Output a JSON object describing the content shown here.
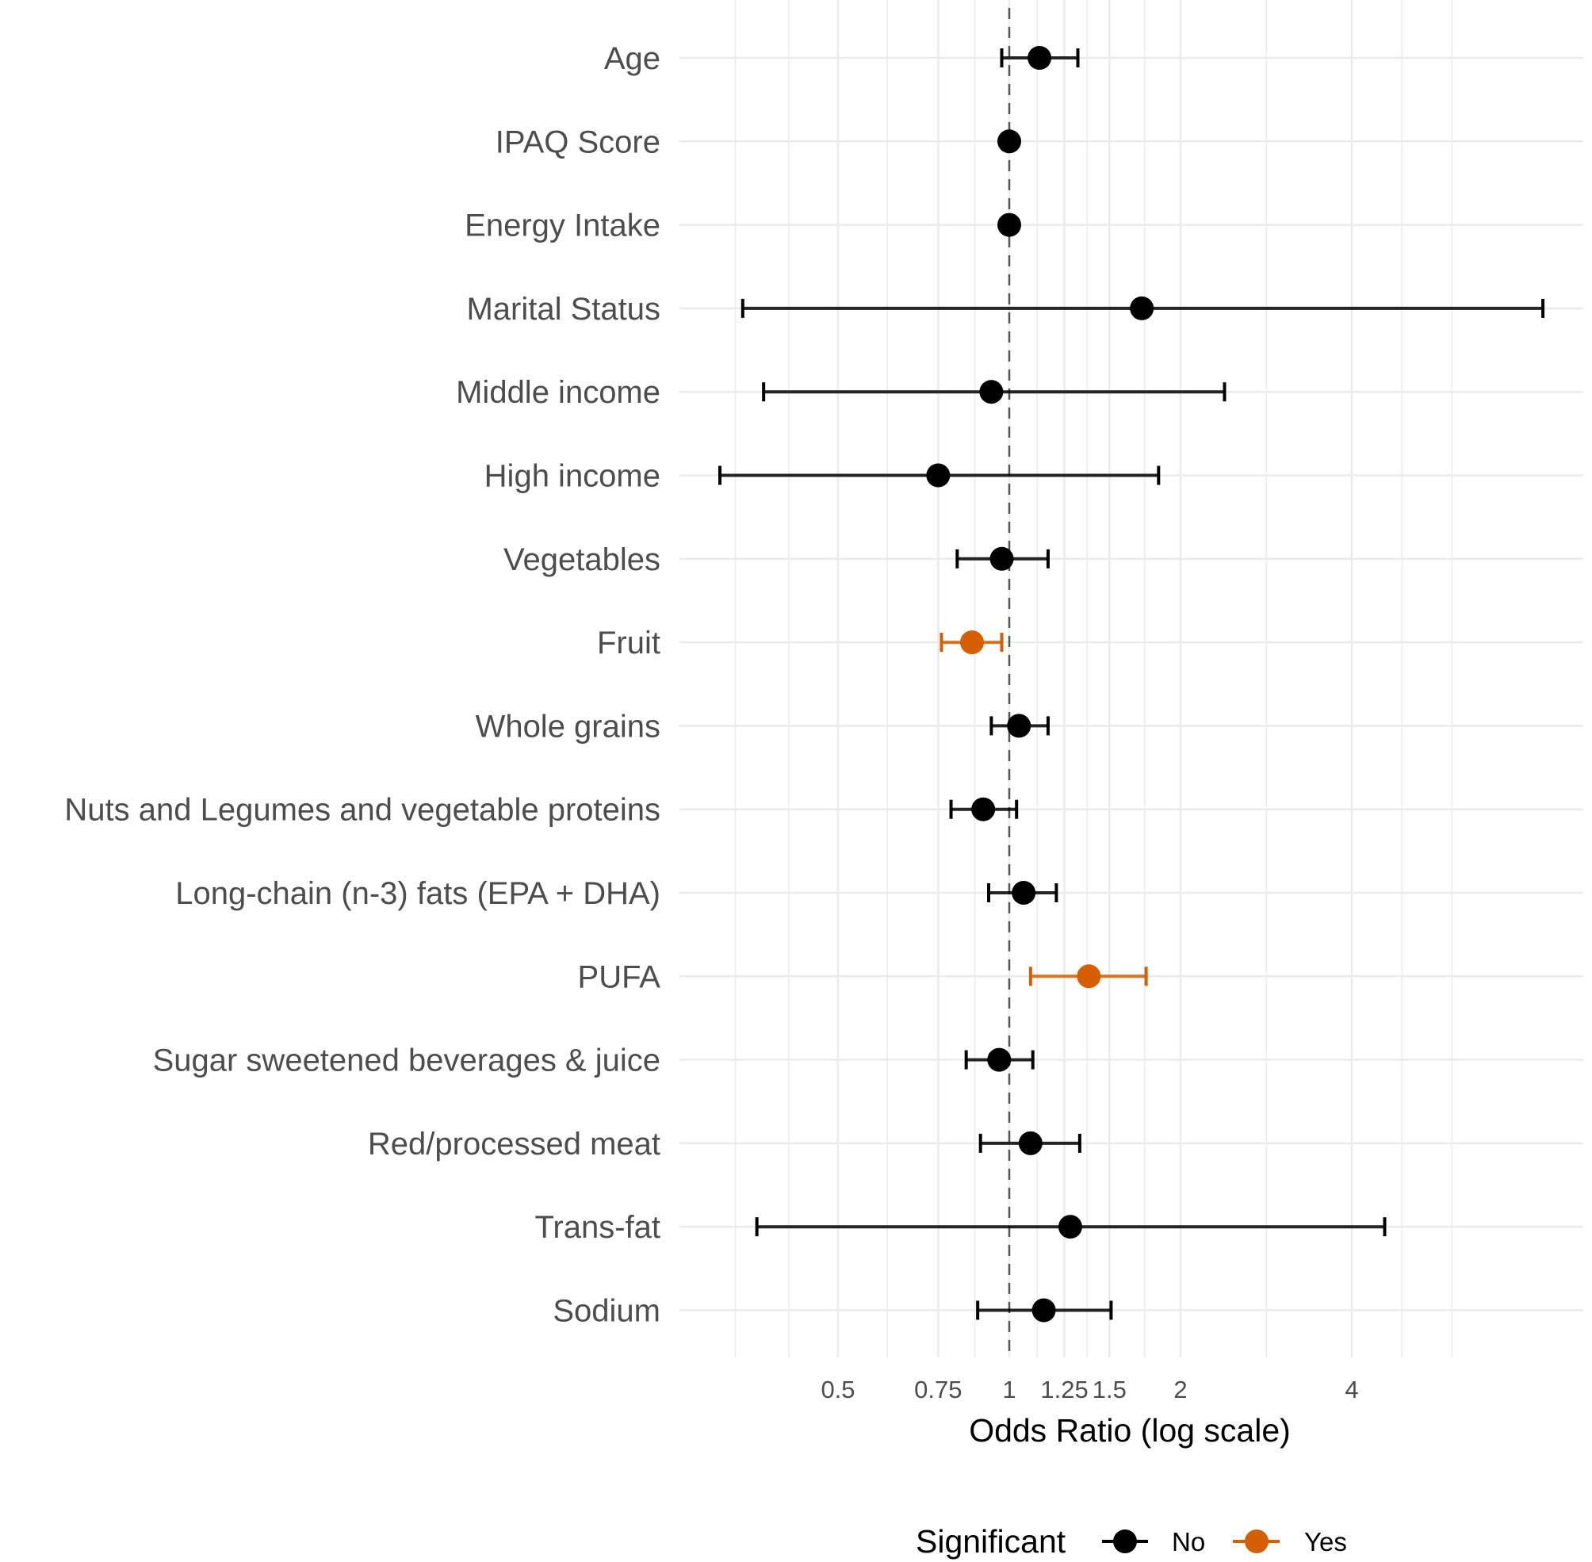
{
  "chart_data": {
    "type": "scatter",
    "subtype": "forest-plot",
    "title": "",
    "xlabel": "Odds Ratio (log scale)",
    "ylabel": "",
    "x_scale": "log",
    "xlim": [
      0.3,
      9.5
    ],
    "x_ticks": [
      {
        "value": 0.5,
        "label": "0.5"
      },
      {
        "value": 0.75,
        "label": "0.75"
      },
      {
        "value": 1,
        "label": "1"
      },
      {
        "value": 1.25,
        "label": "1.25"
      },
      {
        "value": 1.5,
        "label": "1.5"
      },
      {
        "value": 2,
        "label": "2"
      },
      {
        "value": 4,
        "label": "4"
      }
    ],
    "gridlines_x": [
      0.33,
      0.41,
      0.5,
      0.61,
      0.75,
      0.87,
      1,
      1.12,
      1.25,
      1.37,
      1.5,
      1.73,
      2,
      2.83,
      4,
      4.9,
      6
    ],
    "reference_line": {
      "value": 1,
      "style": "dashed"
    },
    "grid": true,
    "legend": {
      "title": "Significant",
      "position": "bottom",
      "entries": [
        {
          "label": "No",
          "color": "#000000"
        },
        {
          "label": "Yes",
          "color": "#D55E00"
        }
      ]
    },
    "series": [
      {
        "name": "Age",
        "or": 1.13,
        "lower": 0.97,
        "upper": 1.32,
        "significant": "No"
      },
      {
        "name": "IPAQ Score",
        "or": 1.0,
        "lower": 0.99,
        "upper": 1.01,
        "significant": "No"
      },
      {
        "name": "Energy Intake",
        "or": 1.0,
        "lower": 0.99,
        "upper": 1.01,
        "significant": "No"
      },
      {
        "name": "Marital Status",
        "or": 1.71,
        "lower": 0.34,
        "upper": 8.67,
        "significant": "No"
      },
      {
        "name": "Middle income",
        "or": 0.93,
        "lower": 0.37,
        "upper": 2.39,
        "significant": "No"
      },
      {
        "name": "High income",
        "or": 0.75,
        "lower": 0.31,
        "upper": 1.83,
        "significant": "No"
      },
      {
        "name": "Vegetables",
        "or": 0.97,
        "lower": 0.81,
        "upper": 1.17,
        "significant": "No"
      },
      {
        "name": "Fruit",
        "or": 0.86,
        "lower": 0.76,
        "upper": 0.97,
        "significant": "Yes"
      },
      {
        "name": "Whole grains",
        "or": 1.04,
        "lower": 0.93,
        "upper": 1.17,
        "significant": "No"
      },
      {
        "name": "Nuts and Legumes and vegetable proteins",
        "or": 0.9,
        "lower": 0.79,
        "upper": 1.03,
        "significant": "No"
      },
      {
        "name": "Long-chain (n-3) fats (EPA + DHA)",
        "or": 1.06,
        "lower": 0.92,
        "upper": 1.21,
        "significant": "No"
      },
      {
        "name": "PUFA",
        "or": 1.38,
        "lower": 1.09,
        "upper": 1.74,
        "significant": "Yes"
      },
      {
        "name": "Sugar sweetened beverages & juice",
        "or": 0.96,
        "lower": 0.84,
        "upper": 1.1,
        "significant": "No"
      },
      {
        "name": "Red/processed meat",
        "or": 1.09,
        "lower": 0.89,
        "upper": 1.33,
        "significant": "No"
      },
      {
        "name": "Trans-fat",
        "or": 1.28,
        "lower": 0.36,
        "upper": 4.57,
        "significant": "No"
      },
      {
        "name": "Sodium",
        "or": 1.15,
        "lower": 0.88,
        "upper": 1.51,
        "significant": "No"
      }
    ]
  },
  "colors": {
    "not_significant": "#000000",
    "significant": "#D55E00",
    "grid": "#ebebeb",
    "reference_line": "#555555",
    "label_text": "#4d4d4d"
  }
}
